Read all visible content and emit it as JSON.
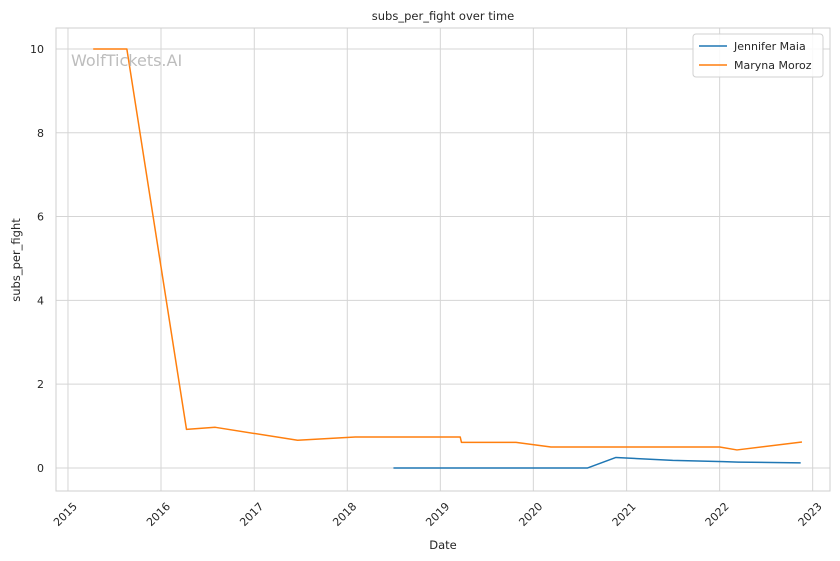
{
  "chart_data": {
    "type": "line",
    "title": "subs_per_fight over time",
    "xlabel": "Date",
    "ylabel": "subs_per_fight",
    "watermark": "WolfTickets.AI",
    "xlim": [
      "2014-11-15",
      "2023-03-10"
    ],
    "ylim": [
      -0.55,
      10.5
    ],
    "x_ticks": [
      "2015",
      "2016",
      "2017",
      "2018",
      "2019",
      "2020",
      "2021",
      "2022",
      "2023"
    ],
    "y_ticks": [
      "0",
      "2",
      "4",
      "6",
      "8",
      "10"
    ],
    "grid": true,
    "legend_position": "top-right",
    "series": [
      {
        "name": "Jennifer Maia",
        "color": "#1f77b4",
        "points": [
          [
            "2018-07-01",
            0.0
          ],
          [
            "2020-08-01",
            0.0
          ],
          [
            "2020-11-20",
            0.25
          ],
          [
            "2021-07-01",
            0.18
          ],
          [
            "2022-01-15",
            0.15
          ],
          [
            "2022-03-15",
            0.14
          ],
          [
            "2022-11-15",
            0.12
          ]
        ]
      },
      {
        "name": "Maryna Moroz",
        "color": "#ff7f0e",
        "points": [
          [
            "2015-04-10",
            10.0
          ],
          [
            "2015-08-20",
            10.0
          ],
          [
            "2016-04-10",
            0.92
          ],
          [
            "2016-08-01",
            0.97
          ],
          [
            "2017-06-20",
            0.66
          ],
          [
            "2018-02-01",
            0.74
          ],
          [
            "2019-03-20",
            0.74
          ],
          [
            "2019-03-25",
            0.61
          ],
          [
            "2019-10-25",
            0.61
          ],
          [
            "2020-03-10",
            0.5
          ],
          [
            "2022-01-01",
            0.5
          ],
          [
            "2022-03-10",
            0.43
          ],
          [
            "2022-11-20",
            0.62
          ]
        ]
      }
    ]
  }
}
